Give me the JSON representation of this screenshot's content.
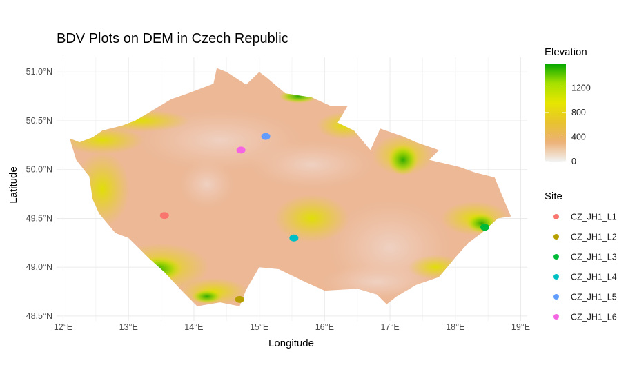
{
  "chart_data": {
    "type": "map",
    "title": "BDV Plots on DEM in Czech Republic",
    "xlabel": "Longitude",
    "ylabel": "Latitude",
    "xlim": [
      11.9,
      19.1
    ],
    "ylim": [
      48.45,
      51.15
    ],
    "x_ticks": [
      12,
      13,
      14,
      15,
      16,
      17,
      18,
      19
    ],
    "x_tick_labels": [
      "12°E",
      "13°E",
      "14°E",
      "15°E",
      "16°E",
      "17°E",
      "18°E",
      "19°E"
    ],
    "y_ticks": [
      48.5,
      49.0,
      49.5,
      50.0,
      50.5,
      51.0
    ],
    "y_tick_labels": [
      "48.5°N",
      "49.0°N",
      "49.5°N",
      "50.0°N",
      "50.5°N",
      "51.0°N"
    ],
    "grid": true,
    "elevation_legend": {
      "title": "Elevation",
      "ticks": [
        0,
        400,
        800,
        1200
      ],
      "tick_labels": [
        "0",
        "400",
        "800",
        "1200"
      ],
      "range": [
        0,
        1600
      ],
      "colors": [
        "#f2f2f2",
        "#ecb176",
        "#e8c32e",
        "#e6e600",
        "#a6e000",
        "#00a600"
      ]
    },
    "site_legend": {
      "title": "Site",
      "items": [
        {
          "name": "CZ_JH1_L1",
          "color": "#f8766d"
        },
        {
          "name": "CZ_JH1_L2",
          "color": "#b79f00"
        },
        {
          "name": "CZ_JH1_L3",
          "color": "#00ba38"
        },
        {
          "name": "CZ_JH1_L4",
          "color": "#00bfc4"
        },
        {
          "name": "CZ_JH1_L5",
          "color": "#619cff"
        },
        {
          "name": "CZ_JH1_L6",
          "color": "#f564e3"
        }
      ]
    },
    "sites": [
      {
        "name": "CZ_JH1_L1",
        "lon": 13.55,
        "lat": 49.53
      },
      {
        "name": "CZ_JH1_L2",
        "lon": 14.7,
        "lat": 48.67
      },
      {
        "name": "CZ_JH1_L3",
        "lon": 18.45,
        "lat": 49.41
      },
      {
        "name": "CZ_JH1_L4",
        "lon": 15.53,
        "lat": 49.3
      },
      {
        "name": "CZ_JH1_L5",
        "lon": 15.1,
        "lat": 50.34
      },
      {
        "name": "CZ_JH1_L6",
        "lon": 14.72,
        "lat": 50.2
      }
    ],
    "country_outline": [
      [
        12.1,
        50.32
      ],
      [
        12.25,
        50.28
      ],
      [
        12.45,
        50.33
      ],
      [
        12.6,
        50.4
      ],
      [
        12.9,
        50.45
      ],
      [
        13.1,
        50.5
      ],
      [
        13.4,
        50.62
      ],
      [
        13.65,
        50.72
      ],
      [
        13.95,
        50.79
      ],
      [
        14.3,
        50.88
      ],
      [
        14.35,
        51.04
      ],
      [
        14.5,
        51.0
      ],
      [
        14.8,
        50.87
      ],
      [
        15.0,
        51.0
      ],
      [
        15.1,
        50.95
      ],
      [
        15.4,
        50.78
      ],
      [
        15.8,
        50.74
      ],
      [
        16.1,
        50.65
      ],
      [
        16.35,
        50.65
      ],
      [
        16.2,
        50.48
      ],
      [
        16.45,
        50.4
      ],
      [
        16.7,
        50.2
      ],
      [
        16.85,
        50.42
      ],
      [
        17.2,
        50.34
      ],
      [
        17.4,
        50.28
      ],
      [
        17.75,
        50.2
      ],
      [
        17.6,
        50.1
      ],
      [
        18.05,
        50.03
      ],
      [
        18.3,
        49.97
      ],
      [
        18.6,
        49.92
      ],
      [
        18.85,
        49.52
      ],
      [
        18.65,
        49.5
      ],
      [
        18.4,
        49.35
      ],
      [
        18.2,
        49.25
      ],
      [
        18.0,
        49.1
      ],
      [
        17.75,
        48.9
      ],
      [
        17.4,
        48.82
      ],
      [
        17.1,
        48.7
      ],
      [
        16.95,
        48.62
      ],
      [
        16.8,
        48.72
      ],
      [
        16.5,
        48.78
      ],
      [
        16.0,
        48.76
      ],
      [
        15.7,
        48.85
      ],
      [
        15.3,
        48.98
      ],
      [
        15.0,
        49.0
      ],
      [
        14.8,
        48.77
      ],
      [
        14.7,
        48.6
      ],
      [
        14.4,
        48.64
      ],
      [
        14.05,
        48.6
      ],
      [
        13.8,
        48.77
      ],
      [
        13.55,
        48.95
      ],
      [
        13.3,
        49.1
      ],
      [
        13.0,
        49.3
      ],
      [
        12.8,
        49.35
      ],
      [
        12.55,
        49.55
      ],
      [
        12.45,
        49.7
      ],
      [
        12.4,
        49.93
      ],
      [
        12.2,
        50.1
      ],
      [
        12.1,
        50.32
      ]
    ]
  }
}
